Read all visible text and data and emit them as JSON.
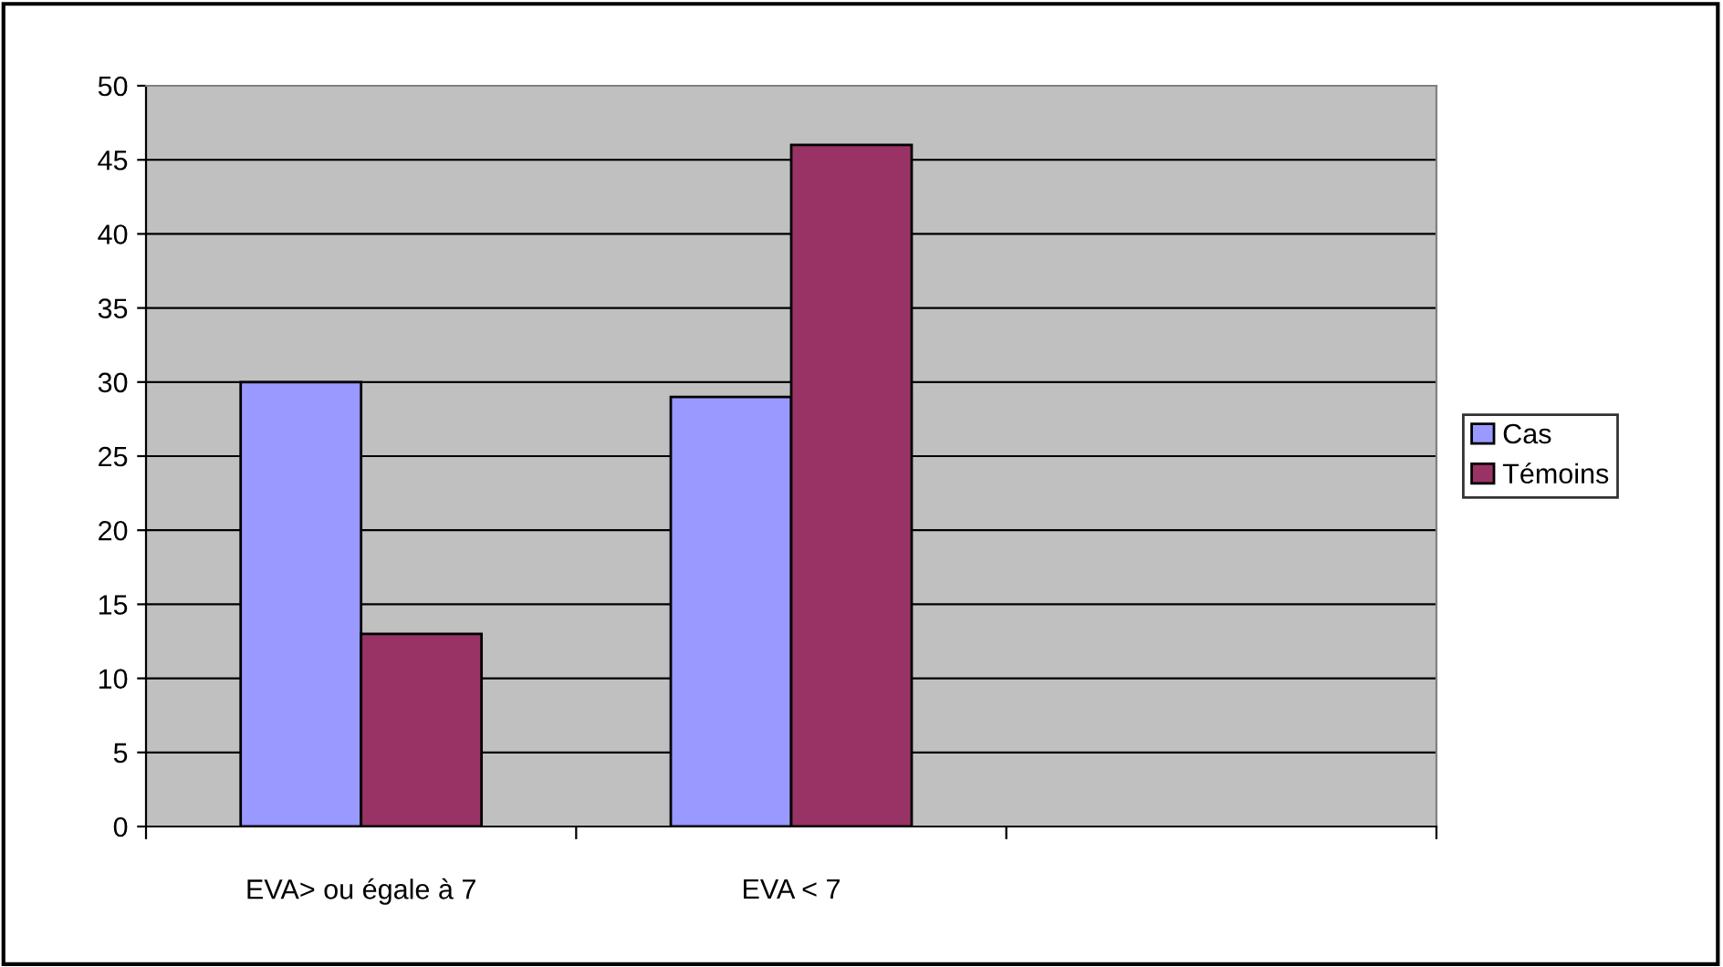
{
  "chart_data": {
    "type": "bar",
    "categories": [
      "EVA> ou égale à 7",
      "EVA < 7",
      null
    ],
    "series": [
      {
        "name": "Cas",
        "color": "#9999ff",
        "values": [
          30,
          29,
          null
        ]
      },
      {
        "name": "Témoins",
        "color": "#993366",
        "values": [
          13,
          46,
          null
        ]
      }
    ],
    "ylim": [
      0,
      50
    ],
    "yticks": [
      0,
      5,
      10,
      15,
      20,
      25,
      30,
      35,
      40,
      45,
      50
    ],
    "grid": "y",
    "legend": "right"
  }
}
